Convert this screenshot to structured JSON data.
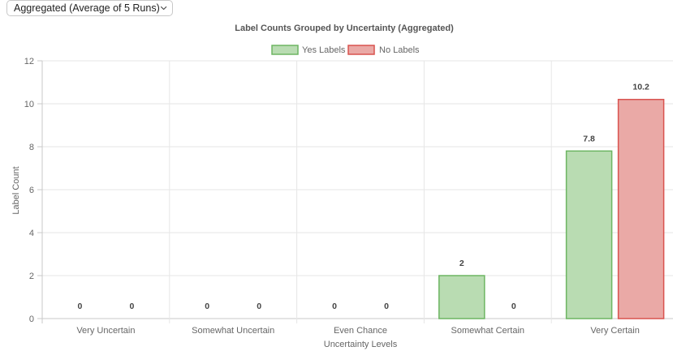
{
  "run_selector": {
    "selected": "Aggregated (Average of 5 Runs)"
  },
  "chart_data": {
    "type": "bar",
    "title": "Label Counts Grouped by Uncertainty (Aggregated)",
    "xlabel": "Uncertainty Levels",
    "ylabel": "Label Count",
    "categories": [
      "Very Uncertain",
      "Somewhat Uncertain",
      "Even Chance",
      "Somewhat Certain",
      "Very Certain"
    ],
    "series": [
      {
        "name": "Yes Labels",
        "values": [
          0,
          0,
          0,
          2,
          7.8
        ],
        "fill": "#b9dcb2",
        "stroke": "#6db562"
      },
      {
        "name": "No Labels",
        "values": [
          0,
          0,
          0,
          0,
          10.2
        ],
        "fill": "#eaa9a6",
        "stroke": "#d9534f"
      }
    ],
    "ylim": [
      0,
      12
    ],
    "yticks": [
      0,
      2,
      4,
      6,
      8,
      10,
      12
    ],
    "grid": true,
    "legend_position": "top"
  }
}
